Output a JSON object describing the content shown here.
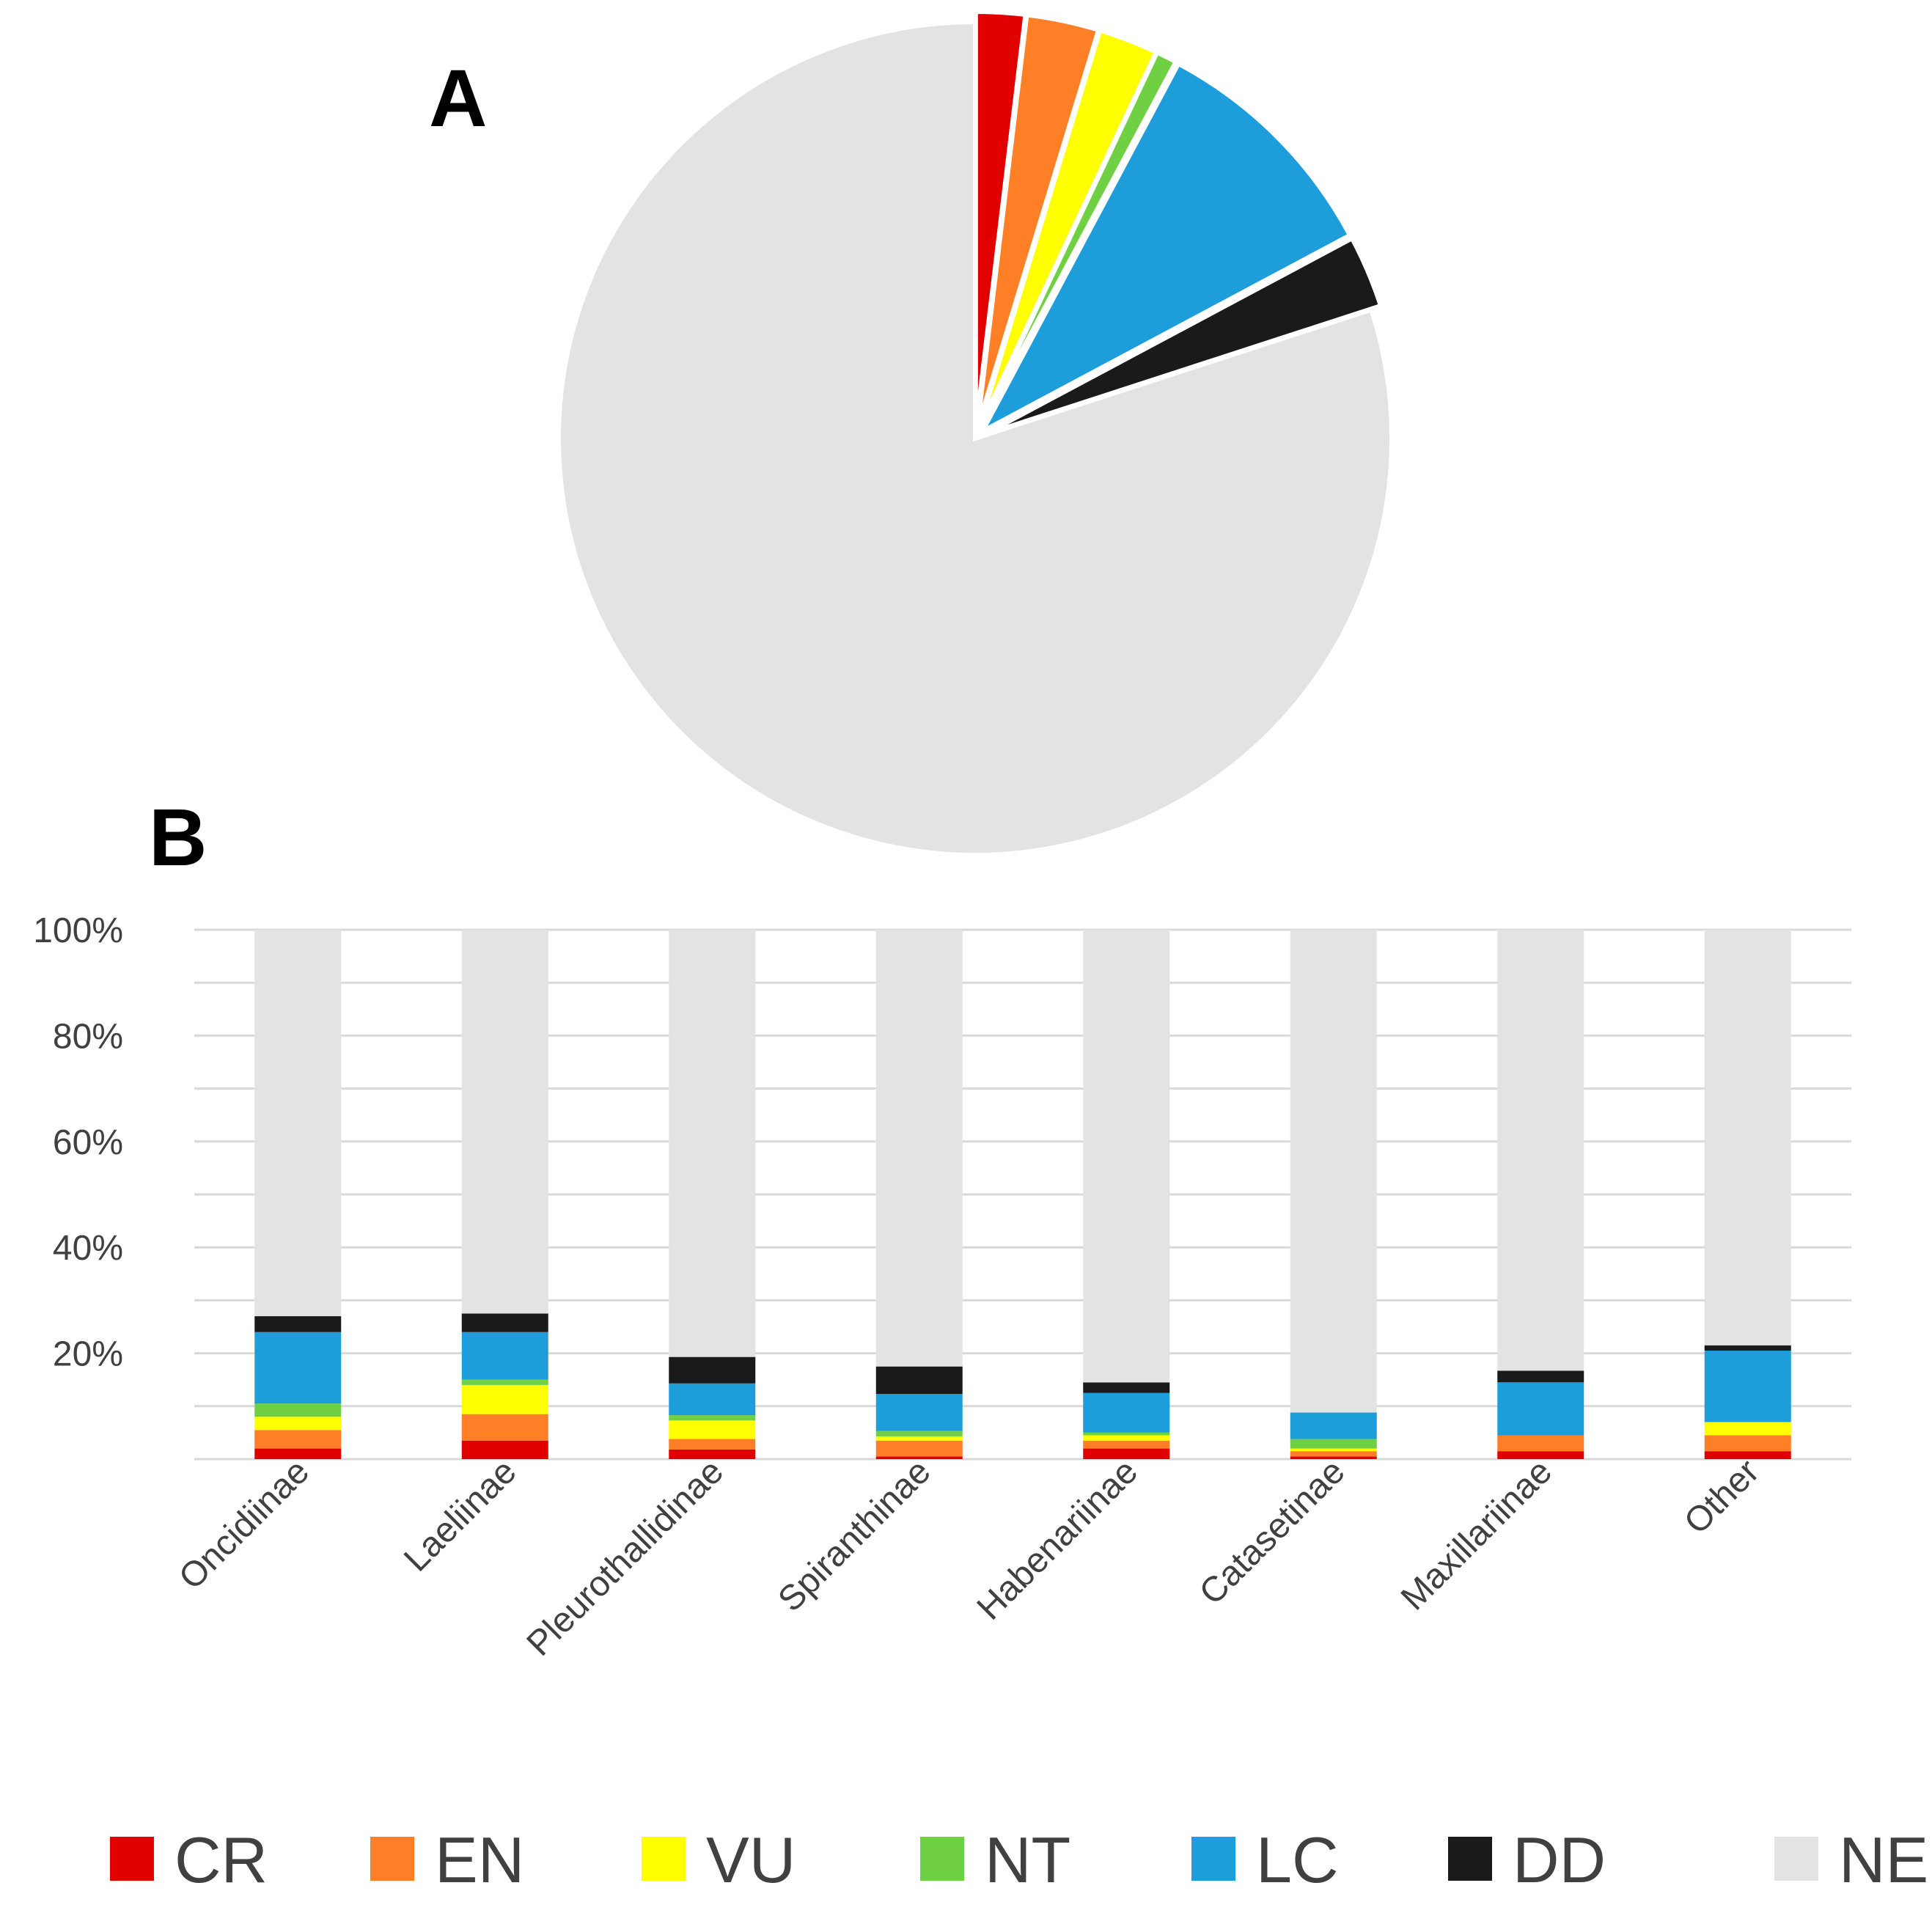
{
  "panels": {
    "a": "A",
    "b": "B"
  },
  "legend": [
    {
      "code": "CR",
      "color": "#e00000"
    },
    {
      "code": "EN",
      "color": "#ff7f27"
    },
    {
      "code": "VU",
      "color": "#ffff00"
    },
    {
      "code": "NT",
      "color": "#70d044"
    },
    {
      "code": "LC",
      "color": "#1e9ddb"
    },
    {
      "code": "DD",
      "color": "#1a1a1a"
    },
    {
      "code": "NE",
      "color": "#e3e3e3"
    }
  ],
  "chart_data": [
    {
      "type": "pie",
      "title": "A",
      "labels": [
        "CR",
        "EN",
        "VU",
        "NT",
        "LC",
        "DD",
        "NE"
      ],
      "values": [
        1.9,
        2.8,
        2.3,
        0.8,
        9.4,
        2.8,
        80.0
      ],
      "colors": [
        "#e00000",
        "#ff7f27",
        "#ffff00",
        "#70d044",
        "#1e9ddb",
        "#1a1a1a",
        "#e3e3e3"
      ],
      "exploded": [
        "CR",
        "EN",
        "VU",
        "NT",
        "LC",
        "DD"
      ]
    },
    {
      "type": "bar",
      "stacked": true,
      "title": "B",
      "categories": [
        "Oncidiinae",
        "Laeliinae",
        "Pleurothallidinae",
        "Spiranthinae",
        "Habenariinae",
        "Catasetinae",
        "Maxillariinae",
        "Other"
      ],
      "yticks": [
        "100%",
        "80%",
        "60%",
        "40%",
        "20%"
      ],
      "ylim": [
        0,
        100
      ],
      "series": [
        {
          "name": "CR",
          "color": "#e00000",
          "values": [
            2.0,
            3.5,
            1.8,
            0.5,
            2.0,
            0.5,
            1.5,
            1.5
          ]
        },
        {
          "name": "EN",
          "color": "#ff7f27",
          "values": [
            3.5,
            5.0,
            2.0,
            3.0,
            1.5,
            1.0,
            3.0,
            3.0
          ]
        },
        {
          "name": "VU",
          "color": "#ffff00",
          "values": [
            2.5,
            5.5,
            3.5,
            0.8,
            1.0,
            0.5,
            0.0,
            2.5
          ]
        },
        {
          "name": "NT",
          "color": "#70d044",
          "values": [
            2.5,
            1.0,
            1.0,
            1.0,
            0.5,
            1.8,
            0.0,
            0.0
          ]
        },
        {
          "name": "LC",
          "color": "#1e9ddb",
          "values": [
            13.5,
            9.0,
            6.0,
            7.0,
            7.5,
            5.0,
            10.0,
            13.5
          ]
        },
        {
          "name": "DD",
          "color": "#1a1a1a",
          "values": [
            3.0,
            3.5,
            5.0,
            5.2,
            2.0,
            0.0,
            2.2,
            1.0
          ]
        },
        {
          "name": "NE",
          "color": "#e3e3e3",
          "values": [
            73.0,
            72.5,
            80.7,
            82.5,
            85.5,
            91.2,
            83.3,
            78.5
          ]
        }
      ]
    }
  ]
}
